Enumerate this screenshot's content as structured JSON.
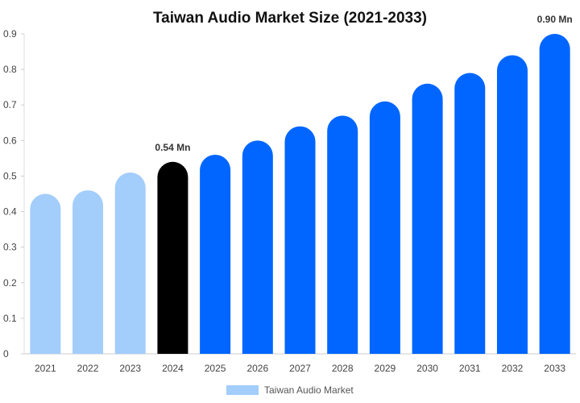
{
  "chart_data": {
    "type": "bar",
    "title": "Taiwan Audio Market Size (2021-2033)",
    "xlabel": "",
    "ylabel": "",
    "categories": [
      "2021",
      "2022",
      "2023",
      "2024",
      "2025",
      "2026",
      "2027",
      "2028",
      "2029",
      "2030",
      "2031",
      "2032",
      "2033"
    ],
    "series": [
      {
        "name": "Taiwan Audio Market",
        "values": [
          0.45,
          0.46,
          0.51,
          0.54,
          0.56,
          0.6,
          0.64,
          0.67,
          0.71,
          0.76,
          0.79,
          0.84,
          0.9
        ]
      }
    ],
    "ylim": [
      0,
      0.9
    ],
    "yticks": [
      "0",
      "0.1",
      "0.2",
      "0.3",
      "0.4",
      "0.5",
      "0.6",
      "0.7",
      "0.8",
      "0.9"
    ],
    "annotations": [
      {
        "category": "2024",
        "text": "0.54 Mn"
      },
      {
        "category": "2033",
        "text": "0.90 Mn"
      }
    ],
    "bar_colors": {
      "historical": "#a3cdfb",
      "current": "#000000",
      "forecast": "#0066ff"
    },
    "historical_categories": [
      "2021",
      "2022",
      "2023"
    ],
    "current_category": "2024",
    "legend": {
      "position": "bottom",
      "color": "#a3cdfb"
    },
    "grid": false
  }
}
